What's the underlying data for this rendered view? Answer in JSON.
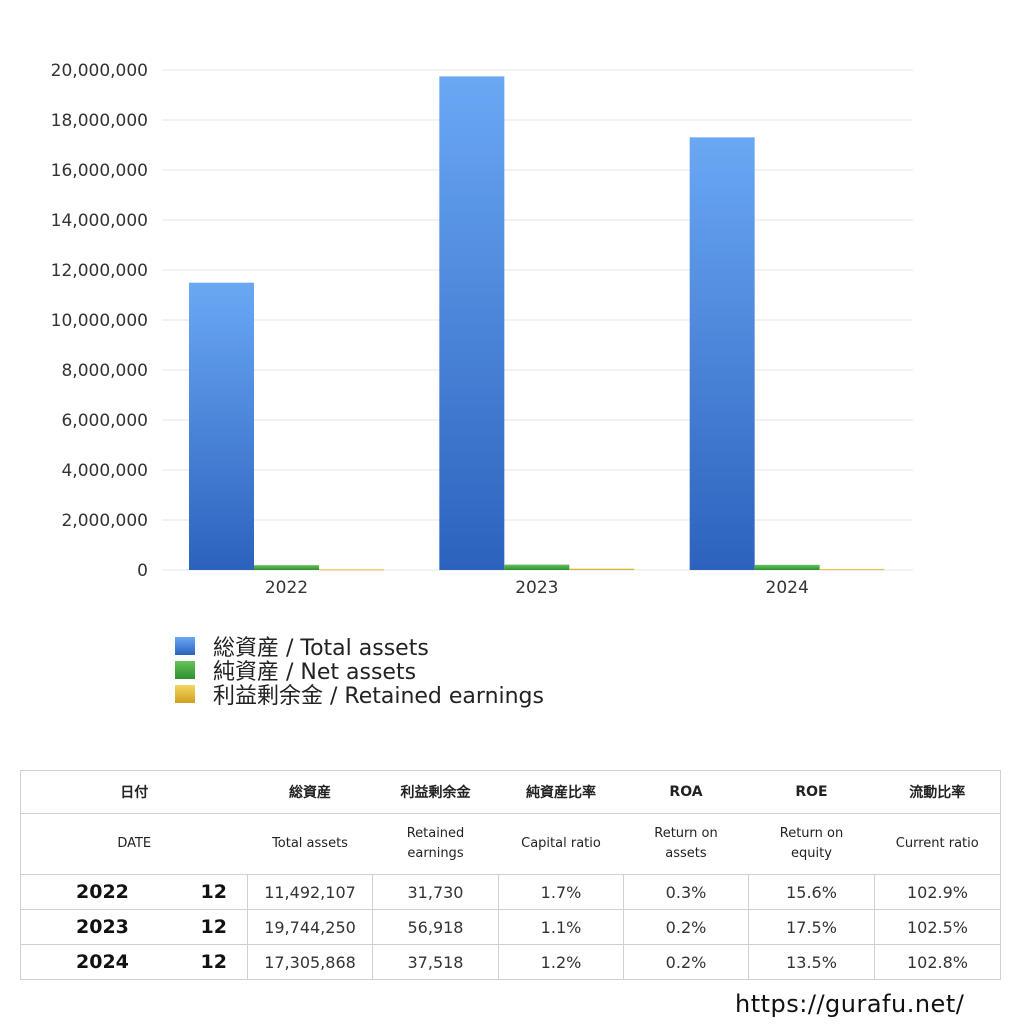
{
  "chart_data": {
    "type": "bar",
    "categories": [
      "2022",
      "2023",
      "2024"
    ],
    "series": [
      {
        "name": "総資産 / Total assets",
        "values": [
          11492107,
          19744250,
          17305868
        ]
      },
      {
        "name": "純資産 / Net assets",
        "values": [
          195366,
          217187,
          207670
        ]
      },
      {
        "name": "利益剰余金 / Retained earnings",
        "values": [
          31730,
          56918,
          37518
        ]
      }
    ],
    "yticks": [
      "0",
      "2,000,000",
      "4,000,000",
      "6,000,000",
      "8,000,000",
      "10,000,000",
      "12,000,000",
      "14,000,000",
      "16,000,000",
      "18,000,000",
      "20,000,000"
    ],
    "ylim": [
      0,
      20000000
    ],
    "grid": true,
    "legend_position": "bottom-left"
  },
  "colors": {
    "total_assets": "#4a86d8",
    "net_assets": "#45a845",
    "retained_earnings": "#e0c040"
  },
  "legend": [
    "総資産 / Total assets",
    "純資産 / Net assets",
    "利益剰余金 / Retained earnings"
  ],
  "table": {
    "headers_jp": [
      "日付",
      "総資産",
      "利益剰余金",
      "純資産比率",
      "ROA",
      "ROE",
      "流動比率"
    ],
    "headers_en": [
      "DATE",
      "Total assets",
      "Retained\nearnings",
      "Capital ratio",
      "Return on\nassets",
      "Return on\nequity",
      "Current ratio"
    ],
    "rows": [
      {
        "year": "2022",
        "month": "12",
        "total_assets": "11,492,107",
        "retained_earnings": "31,730",
        "capital_ratio": "1.7%",
        "roa": "0.3%",
        "roe": "15.6%",
        "current_ratio": "102.9%"
      },
      {
        "year": "2023",
        "month": "12",
        "total_assets": "19,744,250",
        "retained_earnings": "56,918",
        "capital_ratio": "1.1%",
        "roa": "0.2%",
        "roe": "17.5%",
        "current_ratio": "102.5%"
      },
      {
        "year": "2024",
        "month": "12",
        "total_assets": "17,305,868",
        "retained_earnings": "37,518",
        "capital_ratio": "1.2%",
        "roa": "0.2%",
        "roe": "13.5%",
        "current_ratio": "102.8%"
      }
    ]
  },
  "footer": {
    "url": "https://gurafu.net/"
  }
}
